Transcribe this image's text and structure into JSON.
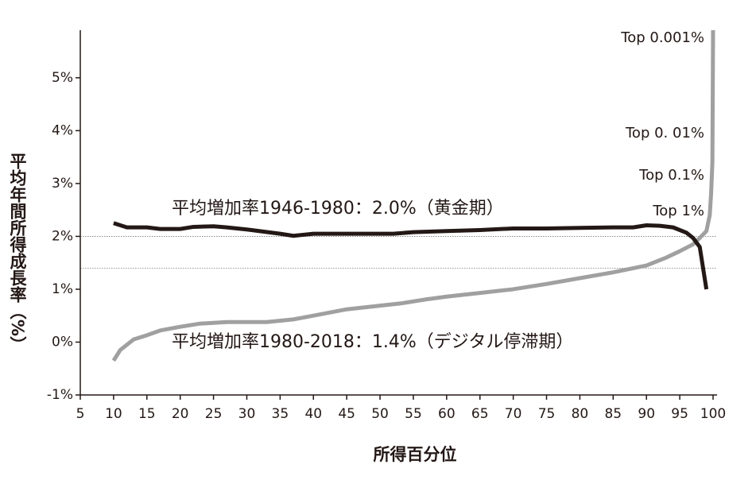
{
  "chart_data": {
    "type": "line",
    "y_label": "平均年間所得成長率（%）",
    "x_label": "所得百分位",
    "xlim": [
      5,
      100
    ],
    "xticks": [
      5,
      10,
      15,
      20,
      25,
      30,
      35,
      40,
      45,
      50,
      55,
      60,
      65,
      70,
      75,
      80,
      85,
      90,
      95,
      100
    ],
    "ylim": [
      -1,
      5.9
    ],
    "yticks": [
      {
        "value": -1,
        "label": "-1%"
      },
      {
        "value": 0,
        "label": "0%"
      },
      {
        "value": 1,
        "label": "1%"
      },
      {
        "value": 2,
        "label": "2%"
      },
      {
        "value": 3,
        "label": "3%"
      },
      {
        "value": 4,
        "label": "4%"
      },
      {
        "value": 5,
        "label": "5%"
      }
    ],
    "hlines": [
      2.0,
      1.4
    ],
    "series": [
      {
        "color": "#231815",
        "x": [
          10,
          12,
          15,
          17,
          20,
          22,
          25,
          27,
          30,
          35,
          37,
          40,
          45,
          50,
          52,
          55,
          60,
          65,
          70,
          75,
          80,
          85,
          88,
          90,
          92,
          94,
          96,
          97,
          98,
          99
        ],
        "values": [
          2.25,
          2.17,
          2.17,
          2.14,
          2.14,
          2.18,
          2.19,
          2.17,
          2.13,
          2.05,
          2.01,
          2.05,
          2.05,
          2.05,
          2.05,
          2.08,
          2.1,
          2.12,
          2.15,
          2.15,
          2.16,
          2.17,
          2.17,
          2.21,
          2.2,
          2.17,
          2.07,
          1.97,
          1.8,
          1.0
        ]
      },
      {
        "color": "#a0a0a0",
        "x": [
          10,
          11,
          13,
          15,
          17,
          20,
          23,
          27,
          30,
          33,
          37,
          40,
          45,
          50,
          53,
          57,
          60,
          65,
          70,
          75,
          80,
          85,
          90,
          93,
          95,
          97,
          98,
          99,
          99.5,
          99.7,
          99.9,
          99.999
        ],
        "values": [
          -0.35,
          -0.15,
          0.05,
          0.13,
          0.22,
          0.29,
          0.35,
          0.38,
          0.38,
          0.38,
          0.43,
          0.5,
          0.62,
          0.69,
          0.73,
          0.81,
          0.86,
          0.93,
          1.0,
          1.1,
          1.21,
          1.32,
          1.45,
          1.6,
          1.72,
          1.85,
          1.97,
          2.1,
          2.4,
          2.8,
          3.4,
          5.9
        ]
      }
    ],
    "annotations": [
      "Top 0.001%",
      "Top 0. 01%",
      "Top 0.1%",
      "Top 1%",
      "平均増加率1946-1980：2.0%（黄金期）",
      "平均増加率1980-2018：1.4%（デジタル停滞期）"
    ]
  }
}
